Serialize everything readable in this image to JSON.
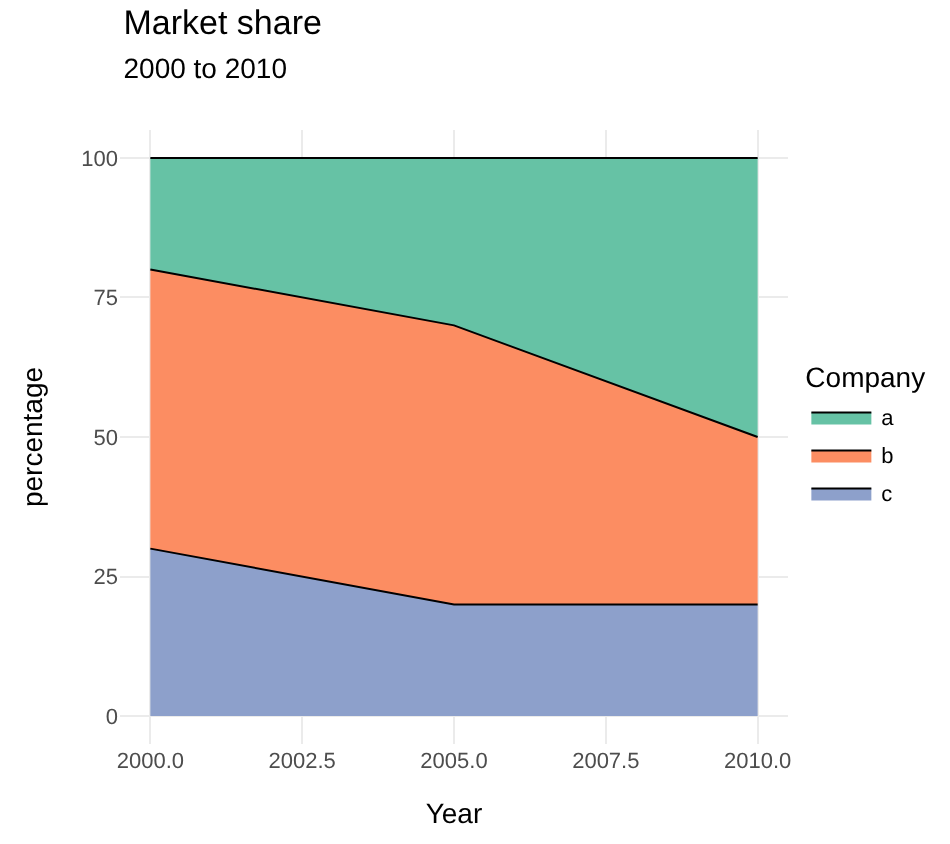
{
  "chart_data": {
    "type": "area",
    "stacked": true,
    "title": "Market share",
    "subtitle": "2000 to 2010",
    "xlabel": "Year",
    "ylabel": "percentage",
    "legend_title": "Company",
    "legend": "right",
    "grid": true,
    "x": [
      2000,
      2005,
      2010
    ],
    "series": [
      {
        "name": "c",
        "color": "#8da0cb",
        "values": [
          30,
          20,
          20
        ]
      },
      {
        "name": "b",
        "color": "#fc8d62",
        "values": [
          50,
          50,
          30
        ]
      },
      {
        "name": "a",
        "color": "#66c2a5",
        "values": [
          20,
          30,
          50
        ]
      }
    ],
    "xlim": [
      1999.5,
      2010.5
    ],
    "ylim": [
      -5,
      105
    ],
    "xticks": [
      {
        "value": 2000,
        "label": "2000.0"
      },
      {
        "value": 2002.5,
        "label": "2002.5"
      },
      {
        "value": 2005,
        "label": "2005.0"
      },
      {
        "value": 2007.5,
        "label": "2007.5"
      },
      {
        "value": 2010,
        "label": "2010.0"
      }
    ],
    "yticks": [
      0,
      25,
      50,
      75,
      100
    ]
  }
}
